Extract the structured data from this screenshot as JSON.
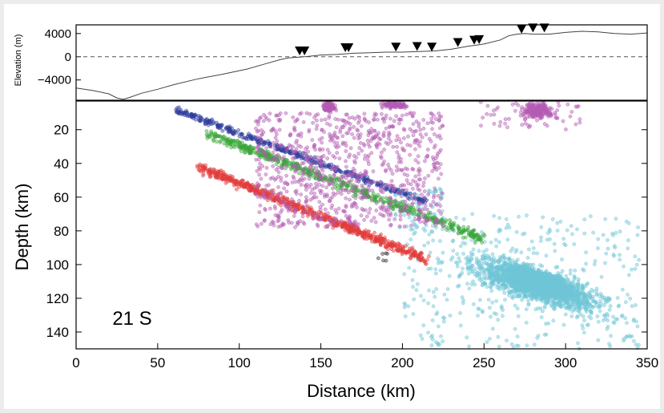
{
  "chart_data": [
    {
      "type": "line",
      "ylabel": "Elevation (m)",
      "xlim": [
        0,
        350
      ],
      "ylim": [
        -7500,
        5500
      ],
      "yticks": [
        -4000,
        0,
        4000
      ],
      "ytick_labels": [
        "−4000",
        "0",
        "4000"
      ],
      "reference_line": 0,
      "profile": {
        "x": [
          0,
          10,
          20,
          25,
          29,
          33,
          40,
          50,
          60,
          75,
          90,
          105,
          115,
          125,
          130,
          140,
          150,
          160,
          170,
          180,
          190,
          200,
          210,
          220,
          230,
          240,
          250,
          260,
          265,
          270,
          275,
          280,
          290,
          300,
          310,
          320,
          330,
          340,
          350
        ],
        "y": [
          -5400,
          -5800,
          -6400,
          -7100,
          -7350,
          -7000,
          -6300,
          -5600,
          -4800,
          -3800,
          -3000,
          -2100,
          -1300,
          -500,
          -200,
          0,
          300,
          400,
          600,
          700,
          800,
          800,
          900,
          1000,
          1300,
          1800,
          2200,
          2900,
          3600,
          3900,
          4000,
          3900,
          3900,
          4200,
          4400,
          4300,
          4000,
          3900,
          4100
        ]
      },
      "stations": {
        "x": [
          137,
          140,
          165,
          167,
          196,
          209,
          218,
          234,
          244,
          247,
          273,
          280,
          287
        ],
        "y": [
          250,
          250,
          800,
          800,
          900,
          1000,
          900,
          1700,
          2100,
          2200,
          4000,
          4200,
          4200
        ]
      }
    },
    {
      "type": "scatter",
      "xlabel": "Distance (km)",
      "ylabel": "Depth (km)",
      "xlim": [
        0,
        350
      ],
      "ylim": [
        150,
        3
      ],
      "xticks": [
        0,
        50,
        100,
        150,
        200,
        250,
        300,
        350
      ],
      "yticks": [
        20,
        40,
        60,
        80,
        100,
        120,
        140
      ],
      "annotation": "21 S",
      "series": [
        {
          "color": "#6fc6d6",
          "clusters": [
            {
              "x": [
                260,
                310
              ],
              "y": [
                95,
                125
              ],
              "n": 1600,
              "spread": 0.5
            },
            {
              "x": [
                230,
                335
              ],
              "y": [
                85,
                140
              ],
              "n": 1600,
              "spread": 0.5
            },
            {
              "x": [
                200,
                345
              ],
              "y": [
                70,
                150
              ],
              "n": 400,
              "spread": 1.0
            },
            {
              "x": [
                195,
                225
              ],
              "y": [
                55,
                80
              ],
              "n": 60,
              "spread": 1.0
            }
          ]
        },
        {
          "color": "#e23b3b",
          "band": {
            "x": [
              75,
              215
            ],
            "y": [
              42,
              97
            ],
            "width": 5,
            "n": 700
          }
        },
        {
          "color": "#3aa63a",
          "band": {
            "x": [
              80,
              250
            ],
            "y": [
              22,
              85
            ],
            "width": 5,
            "n": 600
          }
        },
        {
          "color": "#2f3d9e",
          "band": {
            "x": [
              60,
              215
            ],
            "y": [
              8,
              63
            ],
            "width": 3.5,
            "n": 420
          }
        },
        {
          "color": "#b45cb4",
          "clusters": [
            {
              "x": [
                110,
                225
              ],
              "y": [
                10,
                78
              ],
              "n": 900,
              "spread": 1.0
            },
            {
              "x": [
                150,
                160
              ],
              "y": [
                3,
                10
              ],
              "n": 130,
              "spread": 0.6
            },
            {
              "x": [
                185,
                205
              ],
              "y": [
                3,
                8
              ],
              "n": 110,
              "spread": 0.6
            },
            {
              "x": [
                270,
                295
              ],
              "y": [
                3,
                15
              ],
              "n": 230,
              "spread": 0.6
            },
            {
              "x": [
                245,
                310
              ],
              "y": [
                3,
                20
              ],
              "n": 60,
              "spread": 1.0
            }
          ]
        },
        {
          "color": "#333333",
          "clusters": [
            {
              "x": [
                185,
                195
              ],
              "y": [
                93,
                98
              ],
              "n": 6,
              "spread": 1.0
            }
          ]
        }
      ]
    }
  ]
}
